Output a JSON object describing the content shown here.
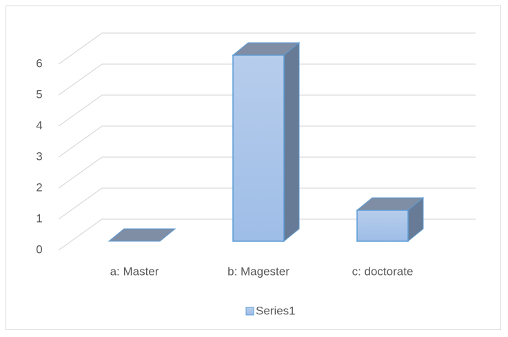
{
  "chart_data": {
    "type": "bar3d",
    "categories": [
      "a: Master",
      "b: Magester",
      "c: doctorate"
    ],
    "series": [
      {
        "name": "Series1",
        "color": "#a9c4ea",
        "values": [
          0,
          6,
          1
        ]
      }
    ],
    "ylim": [
      0,
      6
    ],
    "yticks": [
      0,
      1,
      2,
      3,
      4,
      5,
      6
    ],
    "grid": true,
    "legend": "bottom"
  }
}
